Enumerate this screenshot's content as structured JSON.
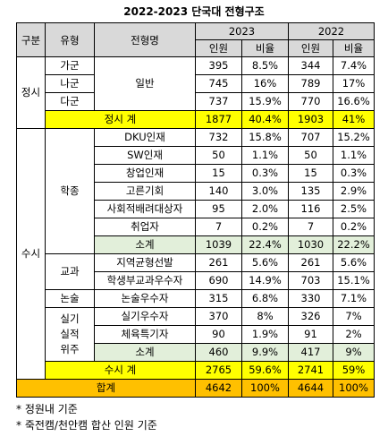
{
  "title": "2022-2023 단국대 전형구조",
  "header": {
    "category": "구분",
    "type": "유형",
    "program": "전형명",
    "years": [
      "2023",
      "2022"
    ],
    "count": "인원",
    "ratio": "비율"
  },
  "table": {
    "rows": [
      [
        "정시",
        "가군",
        "일반",
        "395",
        "8.5%",
        "344",
        "7.4%"
      ],
      [
        "나군",
        "745",
        "16%",
        "789",
        "17%"
      ],
      [
        "다군",
        "737",
        "15.9%",
        "770",
        "16.6%"
      ],
      [
        "정시 계",
        "1877",
        "40.4%",
        "1903",
        "41%"
      ],
      [
        "수시",
        "학종",
        "DKU인재",
        "732",
        "15.8%",
        "707",
        "15.2%"
      ],
      [
        "SW인재",
        "50",
        "1.1%",
        "50",
        "1.1%"
      ],
      [
        "창업인재",
        "15",
        "0.3%",
        "15",
        "0.3%"
      ],
      [
        "고른기회",
        "140",
        "3.0%",
        "135",
        "2.9%"
      ],
      [
        "사회적배려대상자",
        "95",
        "2.0%",
        "116",
        "2.5%"
      ],
      [
        "취업자",
        "7",
        "0.2%",
        "7",
        "0.2%"
      ],
      [
        "소계",
        "1039",
        "22.4%",
        "1030",
        "22.2%"
      ],
      [
        "교과",
        "지역균형선발",
        "261",
        "5.6%",
        "261",
        "5.6%"
      ],
      [
        "학생부교과우수자",
        "690",
        "14.9%",
        "703",
        "15.1%"
      ],
      [
        "논술",
        "논술우수자",
        "315",
        "6.8%",
        "330",
        "7.1%"
      ],
      [
        "실기\n실적\n위주",
        "실기우수자",
        "370",
        "8%",
        "326",
        "7%"
      ],
      [
        "체육특기자",
        "90",
        "1.9%",
        "91",
        "2%"
      ],
      [
        "소계",
        "460",
        "9.9%",
        "417",
        "9%"
      ],
      [
        "수시 계",
        "2765",
        "59.6%",
        "2741",
        "59%"
      ],
      [
        "합계",
        "4642",
        "100%",
        "4644",
        "100%"
      ]
    ]
  },
  "notes": [
    "* 정원내 기준",
    "* 죽전캠/천안캠 합산 인원 기준"
  ]
}
